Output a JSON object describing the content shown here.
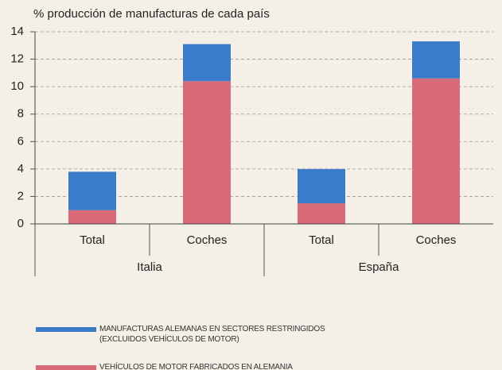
{
  "chart_data": {
    "type": "stacked_bar",
    "y_label": "% producción de manufacturas de cada país",
    "categories": [
      "Total",
      "Coches",
      "Total",
      "Coches"
    ],
    "groups": [
      "Italia",
      "España"
    ],
    "series": [
      {
        "name": "VEHÍCULOS DE MOTOR FABRICADOS EN ALEMANIA",
        "color": "#d96a78",
        "values": [
          1.0,
          10.4,
          1.5,
          10.6
        ]
      },
      {
        "name": "MANUFACTURAS ALEMANAS EN SECTORES RESTRINGIDOS (EXCLUIDOS VEHÍCULOS DE MOTOR)",
        "color": "#3a7cc9",
        "values": [
          2.8,
          2.7,
          2.5,
          2.7
        ]
      }
    ],
    "ylim": [
      0,
      14
    ],
    "yticks": [
      0,
      2,
      4,
      6,
      8,
      10,
      12,
      14
    ],
    "grid": true
  }
}
